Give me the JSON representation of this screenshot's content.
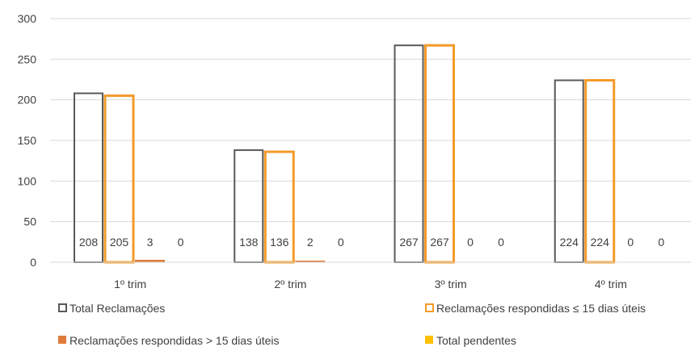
{
  "chart_data": {
    "type": "bar",
    "title": "",
    "xlabel": "",
    "ylabel": "",
    "ylim": [
      0,
      300
    ],
    "yticks": [
      0,
      50,
      100,
      150,
      200,
      250,
      300
    ],
    "grid": true,
    "legend_position": "bottom",
    "categories": [
      "1º trim",
      "2º trim",
      "3º trim",
      "4º trim"
    ],
    "series": [
      {
        "name": "Total Reclamações",
        "values": [
          208,
          138,
          267,
          224
        ],
        "color": "#595959",
        "style": "outline"
      },
      {
        "name": "Reclamações respondidas ≤ 15 dias úteis",
        "values": [
          205,
          136,
          267,
          224
        ],
        "color": "#F39A29",
        "style": "outline"
      },
      {
        "name": "Reclamações respondidas > 15 dias úteis",
        "values": [
          3,
          2,
          0,
          0
        ],
        "color": "#E07B39",
        "style": "filled"
      },
      {
        "name": "Total pendentes",
        "values": [
          0,
          0,
          0,
          0
        ],
        "color": "#FFC000",
        "style": "filled"
      }
    ]
  }
}
